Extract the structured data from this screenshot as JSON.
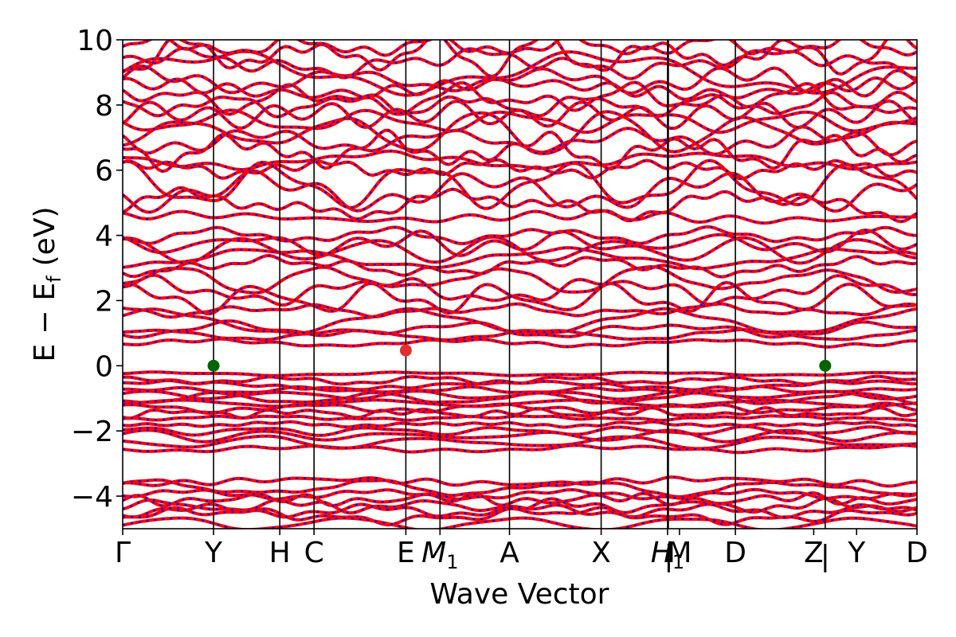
{
  "chart_data": {
    "type": "line",
    "title": "",
    "xlabel": "Wave Vector",
    "ylabel_parts": [
      "E",
      "−",
      "E",
      "f",
      "(eV)"
    ],
    "ylim": [
      -5,
      10
    ],
    "yticks": [
      -4,
      -2,
      0,
      2,
      4,
      6,
      8,
      10
    ],
    "ytick_labels": [
      "−4",
      "−2",
      "0",
      "2",
      "4",
      "6",
      "8",
      "10"
    ],
    "xlim": [
      0,
      1
    ],
    "kpoints": [
      {
        "label": "Γ",
        "x": 0.0
      },
      {
        "label": "Y",
        "x": 0.1144
      },
      {
        "label": "H",
        "x": 0.1978
      },
      {
        "label": "C",
        "x": 0.2409
      },
      {
        "label": "E",
        "x": 0.3565
      },
      {
        "label": "M",
        "sub": "1",
        "italic": true,
        "x": 0.3995
      },
      {
        "label": "A",
        "x": 0.487
      },
      {
        "label": "X",
        "x": 0.6024
      },
      {
        "label": "H",
        "sub": "1",
        "italic": true,
        "x": 0.686
      },
      {
        "label": "|",
        "x": 0.6875
      },
      {
        "label": "M",
        "x": 0.701
      },
      {
        "label": "D",
        "x": 0.7714
      },
      {
        "label": "Z",
        "x": 0.87
      },
      {
        "label": "|",
        "x": 0.8845
      },
      {
        "label": "Y",
        "x": 0.924
      },
      {
        "label": "D",
        "x": 1.0
      }
    ],
    "vlines": [
      0.1144,
      0.1978,
      0.2409,
      0.3565,
      0.3995,
      0.487,
      0.6024,
      0.686,
      0.687,
      0.7714,
      0.8845
    ],
    "markers": [
      {
        "name": "VBM",
        "x": 0.1144,
        "y": 0.0,
        "color": "#006400"
      },
      {
        "name": "CBM",
        "x": 0.3565,
        "y": 0.47,
        "color": "#e03030"
      },
      {
        "name": "VBM",
        "x": 0.8845,
        "y": 0.0,
        "color": "#006400"
      }
    ],
    "band_colors": {
      "primary": "#ff0000",
      "secondary": "#0000ff"
    },
    "valence_levels": [
      -0.25,
      -0.45,
      -0.6,
      -0.75,
      -0.9,
      -1.0,
      -1.15,
      -1.3,
      -1.45,
      -1.6,
      -1.8,
      -2.0,
      -2.15,
      -2.35,
      -2.55,
      -3.55,
      -3.75,
      -3.95,
      -4.1,
      -4.3,
      -4.45,
      -4.6,
      -4.85
    ],
    "conduction_levels": [
      0.7,
      0.95,
      1.1,
      1.35,
      1.7,
      2.05,
      2.3,
      2.65,
      3.05,
      3.3,
      3.55,
      3.75,
      4.0,
      4.55,
      4.95,
      5.35,
      5.55,
      6.05,
      6.3,
      6.6,
      6.9,
      7.15,
      7.5,
      7.7,
      8.0,
      8.2,
      8.5,
      8.75,
      9.0,
      9.3,
      9.55,
      9.8
    ]
  }
}
